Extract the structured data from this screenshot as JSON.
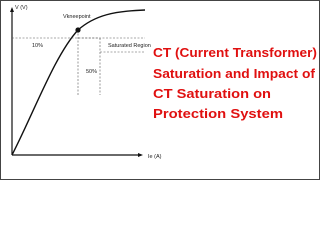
{
  "diagram": {
    "y_axis_label": "V (V)",
    "x_axis_label": "Ie (A)",
    "knee_label": "Vkneepoint",
    "low_percent_label": "10%",
    "high_percent_label": "50%",
    "region_label": "Saturated Region",
    "title_lines": [
      "CT (Current Transformer)",
      "Saturation and Impact of",
      "CT Saturation on",
      "Protection System"
    ]
  }
}
